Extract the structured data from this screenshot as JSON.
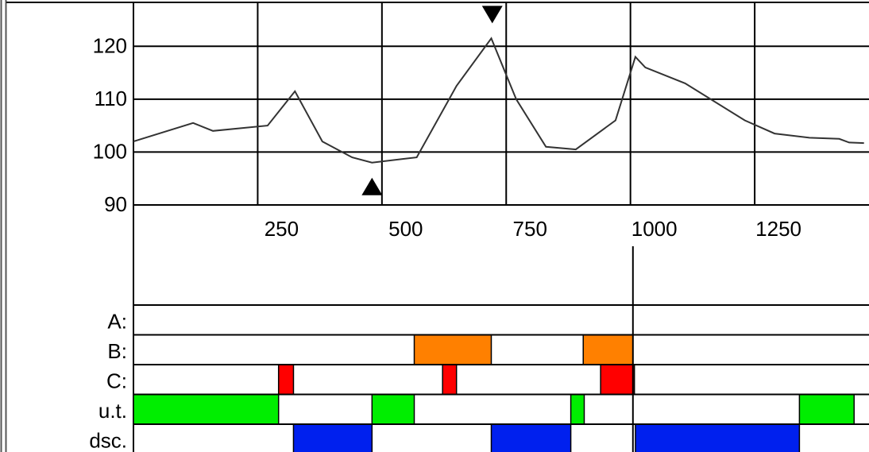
{
  "chart_data": {
    "type": "line",
    "title": "",
    "xlabel": "",
    "ylabel": "",
    "xlim": [
      0,
      1480
    ],
    "ylim": [
      90,
      128
    ],
    "x_ticks": [
      "250",
      "500",
      "750",
      "1000",
      "1250"
    ],
    "x_tick_values": [
      250,
      500,
      750,
      1000,
      1250
    ],
    "y_ticks": [
      "120",
      "110",
      "100",
      "90"
    ],
    "y_tick_values": [
      120,
      110,
      100,
      90
    ],
    "grid": true,
    "series": [
      {
        "color": "#333333",
        "points": [
          [
            0,
            102
          ],
          [
            120,
            105.5
          ],
          [
            160,
            104
          ],
          [
            270,
            105
          ],
          [
            325,
            111.5
          ],
          [
            380,
            102
          ],
          [
            440,
            99
          ],
          [
            480,
            98
          ],
          [
            570,
            99
          ],
          [
            650,
            112.5
          ],
          [
            720,
            121.5
          ],
          [
            770,
            110
          ],
          [
            830,
            101
          ],
          [
            890,
            100.5
          ],
          [
            970,
            106
          ],
          [
            1010,
            118
          ],
          [
            1030,
            116
          ],
          [
            1110,
            113
          ],
          [
            1230,
            106
          ],
          [
            1290,
            103.5
          ],
          [
            1360,
            102.7
          ],
          [
            1420,
            102.5
          ],
          [
            1440,
            101.8
          ],
          [
            1470,
            101.7
          ]
        ]
      }
    ],
    "markers": [
      {
        "shape": "triangle-down",
        "x": 722,
        "y": 126
      },
      {
        "shape": "triangle-up",
        "x": 480,
        "y": 93.5
      }
    ],
    "cursor_x": 1005,
    "tracks": {
      "labels": [
        "A:",
        "B:",
        "C:",
        "u.t.",
        "dsc."
      ],
      "rows": [
        {
          "segments": []
        },
        {
          "segments": [
            {
              "start": 565,
              "end": 720,
              "color": "#ff8000"
            },
            {
              "start": 905,
              "end": 1005,
              "color": "#ff8000"
            }
          ]
        },
        {
          "segments": [
            {
              "start": 292,
              "end": 322,
              "color": "#ff0000"
            },
            {
              "start": 622,
              "end": 650,
              "color": "#ff0000"
            },
            {
              "start": 940,
              "end": 1008,
              "color": "#ff0000"
            }
          ]
        },
        {
          "segments": [
            {
              "start": 0,
              "end": 292,
              "color": "#00ee00"
            },
            {
              "start": 480,
              "end": 565,
              "color": "#00ee00"
            },
            {
              "start": 880,
              "end": 907,
              "color": "#00ee00"
            },
            {
              "start": 1340,
              "end": 1450,
              "color": "#00ee00"
            }
          ]
        },
        {
          "segments": [
            {
              "start": 322,
              "end": 480,
              "color": "#0020ee"
            },
            {
              "start": 720,
              "end": 880,
              "color": "#0020ee"
            },
            {
              "start": 1010,
              "end": 1340,
              "color": "#0020ee"
            }
          ]
        }
      ]
    }
  }
}
